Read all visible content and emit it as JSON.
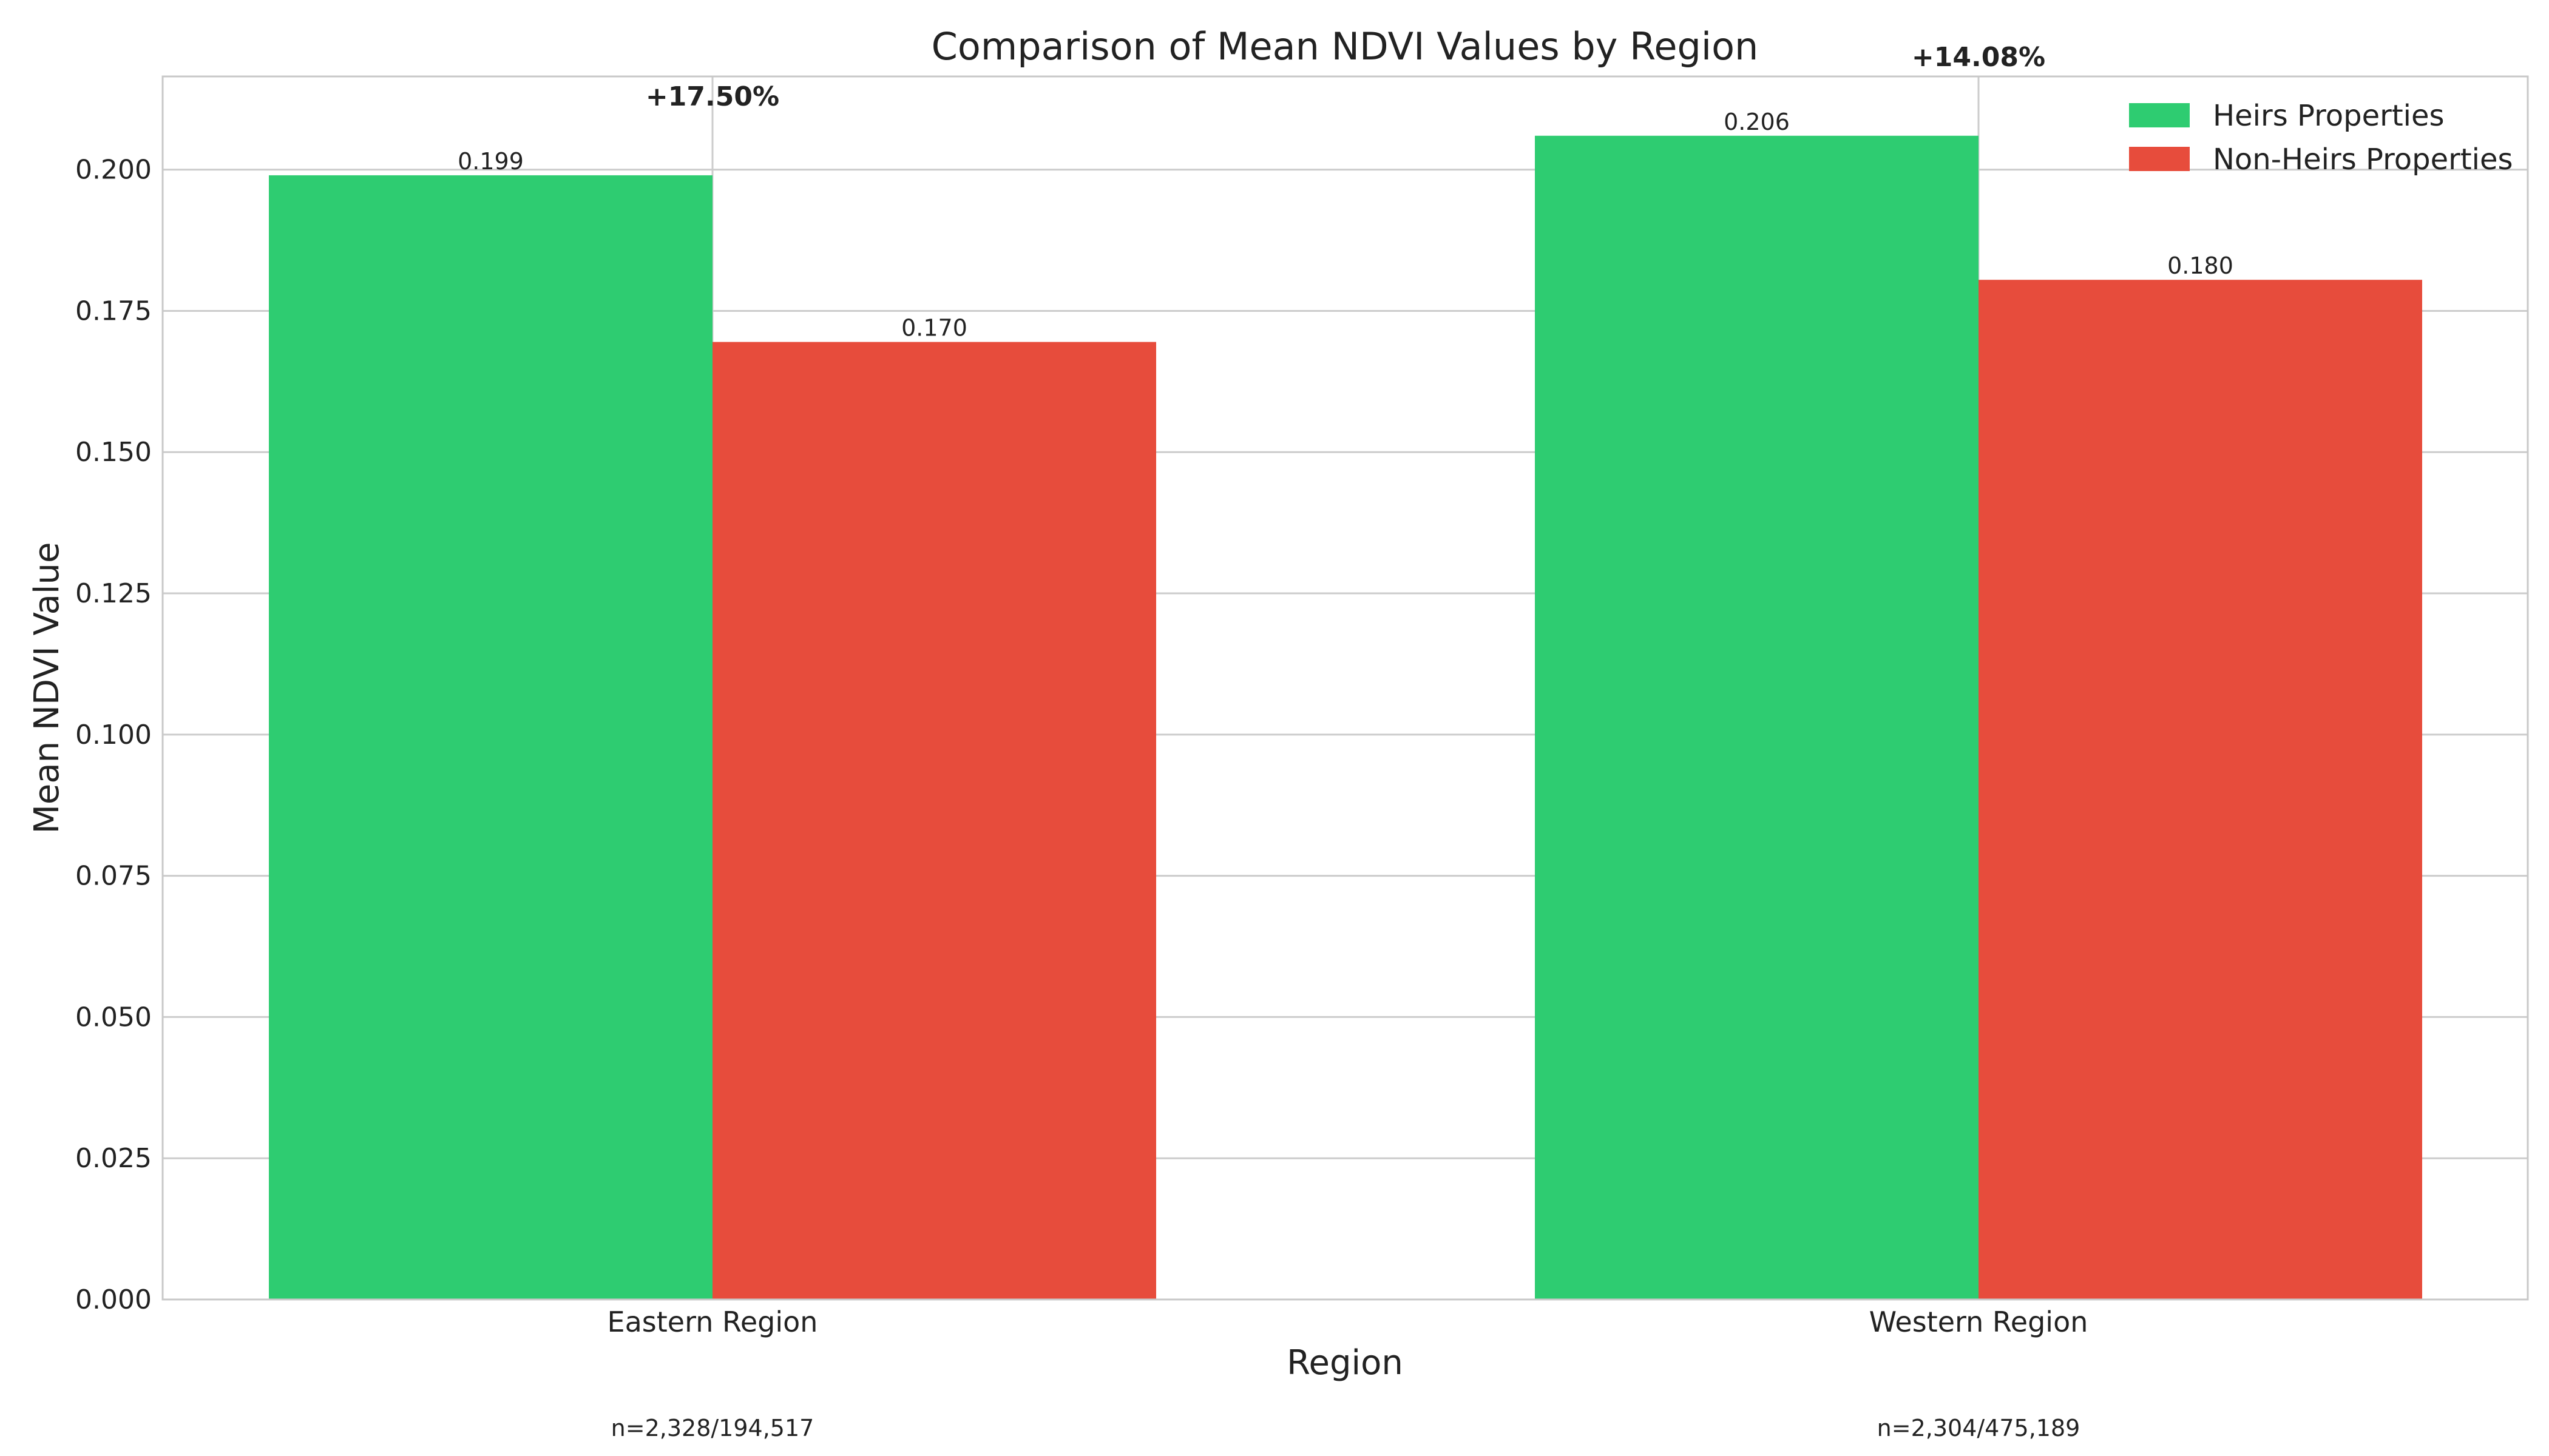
{
  "chart_data": {
    "type": "bar",
    "title": "Comparison of Mean NDVI Values by Region",
    "xlabel": "Region",
    "ylabel": "Mean NDVI Value",
    "ylim": [
      0,
      0.2165
    ],
    "yticks": [
      0.0,
      0.025,
      0.05,
      0.075,
      0.1,
      0.125,
      0.15,
      0.175,
      0.2
    ],
    "ytick_labels": [
      "0.000",
      "0.025",
      "0.050",
      "0.075",
      "0.100",
      "0.125",
      "0.150",
      "0.175",
      "0.200"
    ],
    "categories": [
      "Eastern Region",
      "Western Region"
    ],
    "series": [
      {
        "name": "Heirs Properties",
        "color": "#2ecc71",
        "values": [
          0.199,
          0.206
        ],
        "labels": [
          "0.199",
          "0.206"
        ]
      },
      {
        "name": "Non-Heirs Properties",
        "color": "#e74c3c",
        "values": [
          0.1695,
          0.1805
        ],
        "labels": [
          "0.170",
          "0.180"
        ]
      }
    ],
    "annotations": {
      "percent_diff": [
        "+17.50%",
        "+14.08%"
      ],
      "sample_sizes": [
        "n=2,328/194,517",
        "n=2,304/475,189"
      ]
    },
    "grid": true,
    "legend_position": "top-right"
  }
}
